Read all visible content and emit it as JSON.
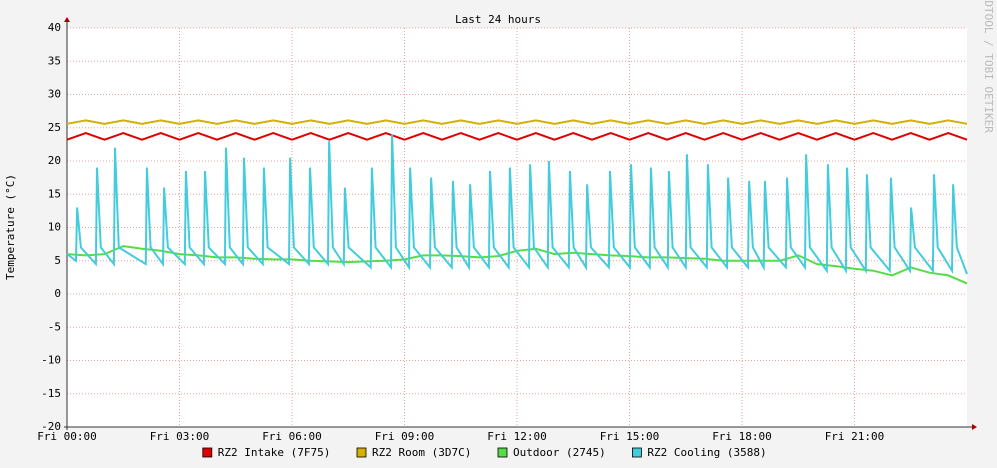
{
  "chart_data": {
    "type": "line",
    "title": "Last 24 hours",
    "y_label": "Temperature (°C)",
    "credit": "RRDTOOL / TOBI OETIKER",
    "xlim": [
      0,
      24
    ],
    "ylim": [
      -20,
      40
    ],
    "xticks": [
      {
        "value": 0,
        "label": "Fri 00:00"
      },
      {
        "value": 3,
        "label": "Fri 03:00"
      },
      {
        "value": 6,
        "label": "Fri 06:00"
      },
      {
        "value": 9,
        "label": "Fri 09:00"
      },
      {
        "value": 12,
        "label": "Fri 12:00"
      },
      {
        "value": 15,
        "label": "Fri 15:00"
      },
      {
        "value": 18,
        "label": "Fri 18:00"
      },
      {
        "value": 21,
        "label": "Fri 21:00"
      }
    ],
    "yticks": [
      -20,
      -15,
      -10,
      -5,
      0,
      5,
      10,
      15,
      20,
      25,
      30,
      35,
      40
    ],
    "grid": true,
    "legend": "bottom",
    "x": [
      0,
      0.5,
      1,
      1.5,
      2,
      2.5,
      3,
      3.5,
      4,
      4.5,
      5,
      5.5,
      6,
      6.5,
      7,
      7.5,
      8,
      8.5,
      9,
      9.5,
      10,
      10.5,
      11,
      11.5,
      12,
      12.5,
      13,
      13.5,
      14,
      14.5,
      15,
      15.5,
      16,
      16.5,
      17,
      17.5,
      18,
      18.5,
      19,
      19.5,
      20,
      20.5,
      21,
      21.5,
      22,
      22.5,
      23,
      23.5,
      24
    ],
    "series": [
      {
        "name": "RZ2 Intake (7F75)",
        "color": "#e00000",
        "values": [
          23.2,
          24.2,
          23.2,
          24.2,
          23.2,
          24.2,
          23.2,
          24.2,
          23.2,
          24.2,
          23.2,
          24.2,
          23.2,
          24.2,
          23.2,
          24.2,
          23.2,
          24.2,
          23.2,
          24.2,
          23.2,
          24.2,
          23.2,
          24.2,
          23.2,
          24.2,
          23.2,
          24.2,
          23.2,
          24.2,
          23.2,
          24.2,
          23.2,
          24.2,
          23.2,
          24.2,
          23.2,
          24.2,
          23.2,
          24.2,
          23.2,
          24.2,
          23.2,
          24.2,
          23.2,
          24.2,
          23.2,
          24.2,
          23.2
        ]
      },
      {
        "name": "RZ2 Room (3D7C)",
        "color": "#d4b000",
        "values": [
          25.6,
          26.1,
          25.6,
          26.1,
          25.6,
          26.1,
          25.6,
          26.1,
          25.6,
          26.1,
          25.6,
          26.1,
          25.6,
          26.1,
          25.6,
          26.1,
          25.6,
          26.1,
          25.6,
          26.1,
          25.6,
          26.1,
          25.6,
          26.1,
          25.6,
          26.1,
          25.6,
          26.1,
          25.6,
          26.1,
          25.6,
          26.1,
          25.6,
          26.1,
          25.6,
          26.1,
          25.6,
          26.1,
          25.6,
          26.1,
          25.6,
          26.1,
          25.6,
          26.1,
          25.6,
          26.1,
          25.6,
          26.1,
          25.6
        ]
      },
      {
        "name": "Outdoor (2745)",
        "color": "#55dd44",
        "values": [
          6,
          5.8,
          6,
          7.2,
          6.8,
          6.5,
          6,
          5.8,
          5.5,
          5.5,
          5.3,
          5.2,
          5.2,
          5,
          4.9,
          4.8,
          4.9,
          5,
          5.2,
          5.8,
          5.8,
          5.7,
          5.5,
          5.7,
          6.5,
          6.8,
          6,
          6.2,
          6,
          5.8,
          5.7,
          5.5,
          5.5,
          5.4,
          5.3,
          5,
          5,
          5,
          5,
          5.8,
          4.5,
          4.2,
          3.8,
          3.5,
          2.8,
          4,
          3.2,
          2.8,
          1.6
        ]
      },
      {
        "name": "RZ2 Cooling (3588)",
        "color": "#44ccdd",
        "x": [
          0,
          0.24,
          0.27,
          0.37,
          0.77,
          0.8,
          0.9,
          1.25,
          1.28,
          1.38,
          2.1,
          2.13,
          2.23,
          2.56,
          2.59,
          2.69,
          3.14,
          3.17,
          3.27,
          3.65,
          3.68,
          3.78,
          4.21,
          4.24,
          4.34,
          4.69,
          4.72,
          4.82,
          5.22,
          5.25,
          5.35,
          5.92,
          5.95,
          6.05,
          6.45,
          6.48,
          6.58,
          6.96,
          6.99,
          7.09,
          7.38,
          7.41,
          7.51,
          8.1,
          8.13,
          8.23,
          8.64,
          8.67,
          8.77,
          9.12,
          9.15,
          9.25,
          9.68,
          9.71,
          9.81,
          10.26,
          10.29,
          10.39,
          10.72,
          10.75,
          10.85,
          11.25,
          11.28,
          11.38,
          11.78,
          11.81,
          11.91,
          12.32,
          12.35,
          12.45,
          12.82,
          12.85,
          12.95,
          13.38,
          13.41,
          13.51,
          13.84,
          13.87,
          13.97,
          14.45,
          14.48,
          14.58,
          15.01,
          15.04,
          15.14,
          15.54,
          15.57,
          15.67,
          16.02,
          16.05,
          16.15,
          16.5,
          16.53,
          16.63,
          17.06,
          17.09,
          17.19,
          17.6,
          17.63,
          17.73,
          18.16,
          18.19,
          18.29,
          18.58,
          18.61,
          18.71,
          19.17,
          19.2,
          19.3,
          19.68,
          19.71,
          19.81,
          20.26,
          20.29,
          20.39,
          20.77,
          20.8,
          20.9,
          21.3,
          21.33,
          21.43,
          21.94,
          21.97,
          22.07,
          22.48,
          22.51,
          22.61,
          23.09,
          23.12,
          23.22,
          23.6,
          23.63,
          23.73,
          24
        ],
        "values": [
          6,
          5,
          13,
          7,
          4.5,
          19,
          7,
          4.5,
          22,
          7,
          4.5,
          19,
          7,
          4.5,
          16,
          7,
          4.5,
          18.5,
          7,
          4.5,
          18.5,
          7,
          4.5,
          22,
          7,
          4.5,
          20.5,
          7,
          4.5,
          19,
          7,
          4.5,
          20.5,
          7,
          4.5,
          19,
          7,
          4.5,
          23,
          7,
          4.5,
          16,
          7,
          4,
          19,
          7,
          4,
          24,
          7,
          4,
          19,
          7,
          4,
          17.5,
          7,
          4,
          17,
          7,
          4,
          16.5,
          7,
          4,
          18.5,
          7,
          4,
          19,
          7,
          4,
          19.5,
          7,
          4,
          20,
          7,
          4,
          18.5,
          7,
          4,
          16.5,
          7,
          4,
          18.5,
          7,
          4,
          19.5,
          7,
          4,
          19,
          7,
          4,
          18.5,
          7,
          4,
          21,
          7,
          4,
          19.5,
          7,
          4,
          17.5,
          7,
          4,
          17,
          7,
          4,
          17,
          7,
          4,
          17.5,
          7,
          4,
          21,
          7,
          3.5,
          19.5,
          7,
          3.5,
          19,
          7,
          3.5,
          18,
          7,
          3.5,
          17.5,
          7,
          3.5,
          13,
          7,
          3.5,
          18,
          7,
          3.5,
          16.5,
          7,
          3
        ]
      }
    ]
  }
}
